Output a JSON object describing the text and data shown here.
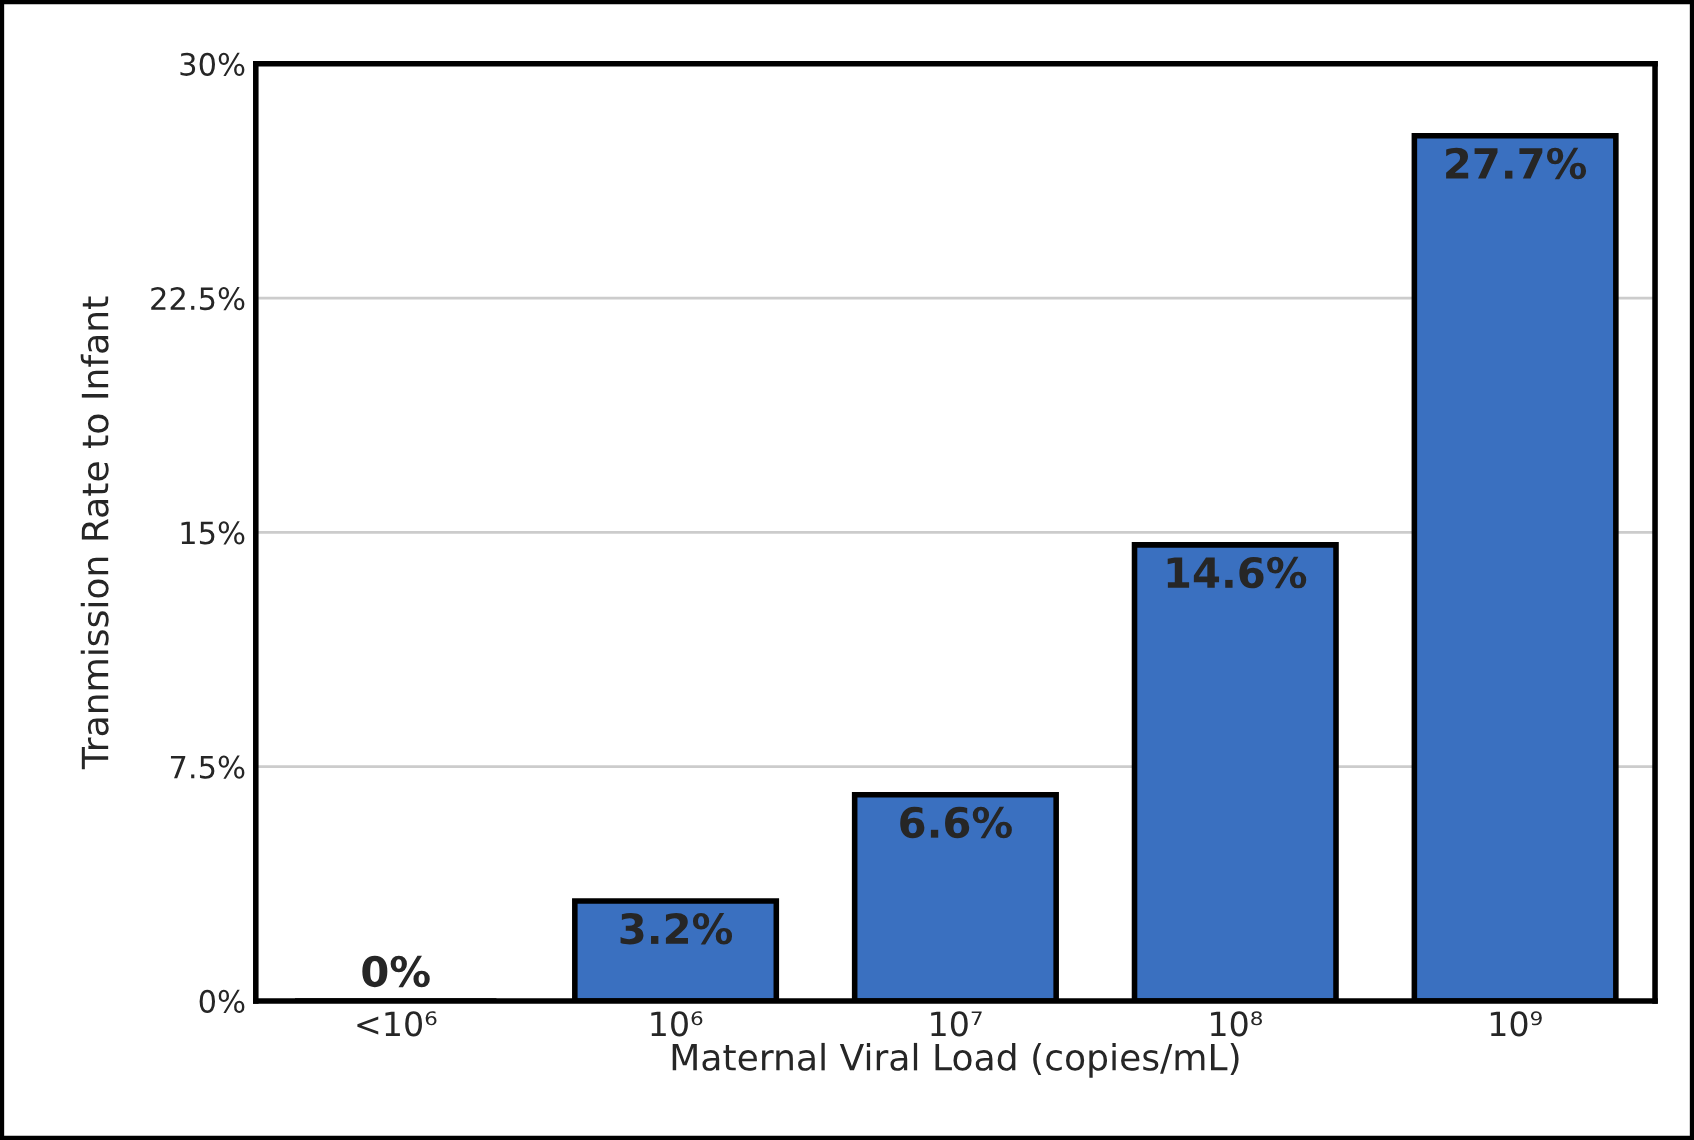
{
  "chart_data": {
    "type": "bar",
    "xlabel": "Maternal Viral Load (copies/mL)",
    "ylabel": "Tranmission Rate to Infant",
    "categories": [
      "<10⁶",
      "10⁶",
      "10⁷",
      "10⁸",
      "10⁹"
    ],
    "values": [
      0,
      3.2,
      6.6,
      14.6,
      27.7
    ],
    "value_labels": [
      "0%",
      "3.2%",
      "6.6%",
      "14.6%",
      "27.7%"
    ],
    "color": "#3a70c0",
    "ylim": [
      0,
      30
    ],
    "yticks": [
      {
        "value": 0,
        "label": "0%"
      },
      {
        "value": 7.5,
        "label": "7.5%"
      },
      {
        "value": 15,
        "label": "15%"
      },
      {
        "value": 22.5,
        "label": "22.5%"
      },
      {
        "value": 30,
        "label": "30%"
      }
    ],
    "grid": "y",
    "legend": false
  }
}
